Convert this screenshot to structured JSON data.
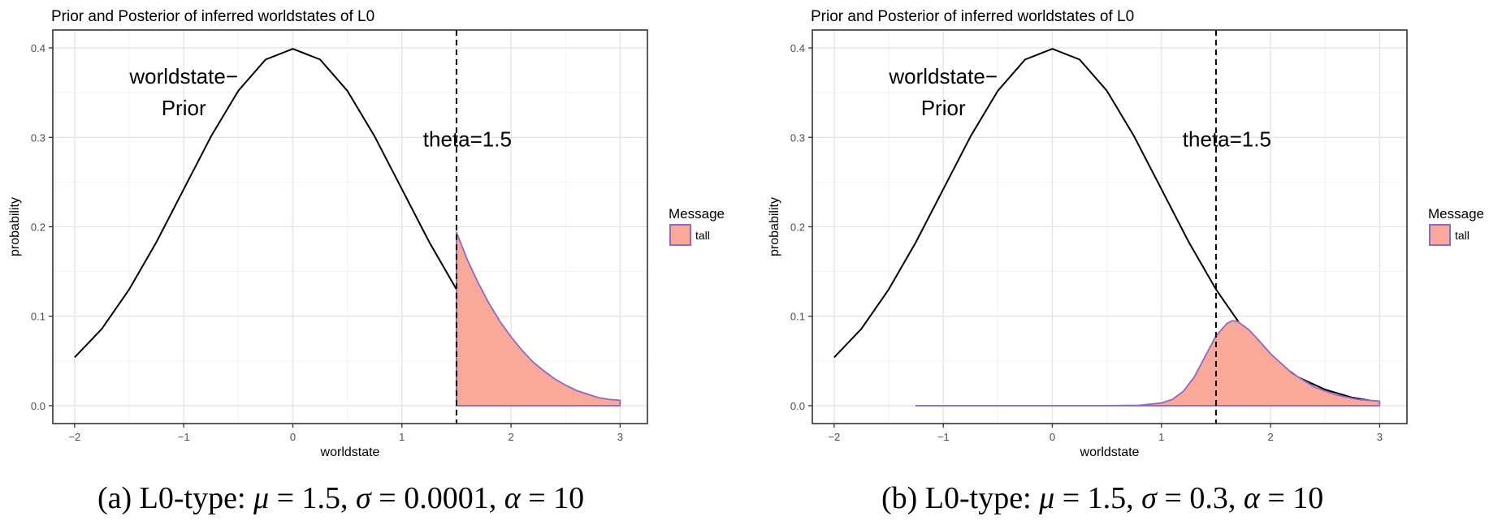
{
  "chart_data": [
    {
      "type": "area",
      "title": "Prior and Posterior of inferred worldstates of L0",
      "xlabel": "worldstate",
      "ylabel": "probability",
      "xlim": [
        -2.2,
        3.25
      ],
      "ylim": [
        -0.02,
        0.42
      ],
      "x_ticks": [
        -2,
        -1,
        0,
        1,
        2,
        3
      ],
      "x_tick_labels": [
        "−2",
        "−1",
        "0",
        "1",
        "2",
        "3"
      ],
      "y_ticks": [
        0.0,
        0.1,
        0.2,
        0.3,
        0.4
      ],
      "y_tick_labels": [
        "0.0",
        "0.1",
        "0.2",
        "0.3",
        "0.4"
      ],
      "grid": true,
      "legend": {
        "title": "Message",
        "position": "right",
        "entries": [
          {
            "label": "tall",
            "fill": "#f8a99a",
            "stroke": "#8b6bc7"
          }
        ]
      },
      "annotations": [
        {
          "lines": [
            "worldstate−",
            "Prior"
          ],
          "x": -1.0,
          "y": 0.36
        },
        {
          "lines": [
            "theta=1.5"
          ],
          "x": 1.6,
          "y": 0.29
        }
      ],
      "vline": {
        "x": 1.5,
        "style": "dashed"
      },
      "series": [
        {
          "name": "worldstate−Prior",
          "kind": "line",
          "color": "#000000",
          "x": [
            -2.0,
            -1.75,
            -1.5,
            -1.25,
            -1.0,
            -0.75,
            -0.5,
            -0.25,
            0.0,
            0.25,
            0.5,
            0.75,
            1.0,
            1.25,
            1.5,
            1.75,
            2.0,
            2.25,
            2.5,
            2.75,
            3.0
          ],
          "y": [
            0.054,
            0.086,
            0.13,
            0.183,
            0.242,
            0.301,
            0.352,
            0.387,
            0.399,
            0.387,
            0.352,
            0.301,
            0.242,
            0.183,
            0.13,
            0.086,
            0.054,
            0.032,
            0.018,
            0.009,
            0.004
          ]
        },
        {
          "name": "tall",
          "kind": "area",
          "fill": "#f8a99a",
          "stroke": "#8b6bc7",
          "x": [
            1.5,
            1.6,
            1.7,
            1.8,
            1.9,
            2.0,
            2.1,
            2.2,
            2.3,
            2.4,
            2.5,
            2.6,
            2.7,
            2.8,
            2.9,
            3.0
          ],
          "y": [
            0.194,
            0.163,
            0.137,
            0.114,
            0.094,
            0.077,
            0.062,
            0.049,
            0.039,
            0.03,
            0.023,
            0.017,
            0.013,
            0.009,
            0.007,
            0.006
          ]
        }
      ]
    },
    {
      "type": "area",
      "title": "Prior and Posterior of inferred worldstates of L0",
      "xlabel": "worldstate",
      "ylabel": "probability",
      "xlim": [
        -2.2,
        3.25
      ],
      "ylim": [
        -0.02,
        0.42
      ],
      "x_ticks": [
        -2,
        -1,
        0,
        1,
        2,
        3
      ],
      "x_tick_labels": [
        "−2",
        "−1",
        "0",
        "1",
        "2",
        "3"
      ],
      "y_ticks": [
        0.0,
        0.1,
        0.2,
        0.3,
        0.4
      ],
      "y_tick_labels": [
        "0.0",
        "0.1",
        "0.2",
        "0.3",
        "0.4"
      ],
      "grid": true,
      "legend": {
        "title": "Message",
        "position": "right",
        "entries": [
          {
            "label": "tall",
            "fill": "#f8a99a",
            "stroke": "#8b6bc7"
          }
        ]
      },
      "annotations": [
        {
          "lines": [
            "worldstate−",
            "Prior"
          ],
          "x": -1.0,
          "y": 0.36
        },
        {
          "lines": [
            "theta=1.5"
          ],
          "x": 1.6,
          "y": 0.29
        }
      ],
      "vline": {
        "x": 1.5,
        "style": "dashed"
      },
      "series": [
        {
          "name": "worldstate−Prior",
          "kind": "line",
          "color": "#000000",
          "x": [
            -2.0,
            -1.75,
            -1.5,
            -1.25,
            -1.0,
            -0.75,
            -0.5,
            -0.25,
            0.0,
            0.25,
            0.5,
            0.75,
            1.0,
            1.25,
            1.5,
            1.75,
            2.0,
            2.25,
            2.5,
            2.75,
            3.0
          ],
          "y": [
            0.054,
            0.086,
            0.13,
            0.183,
            0.242,
            0.301,
            0.352,
            0.387,
            0.399,
            0.387,
            0.352,
            0.301,
            0.242,
            0.183,
            0.13,
            0.086,
            0.054,
            0.032,
            0.018,
            0.009,
            0.004
          ]
        },
        {
          "name": "tall",
          "kind": "area",
          "fill": "#f8a99a",
          "stroke": "#8b6bc7",
          "x": [
            -1.25,
            -0.5,
            0.0,
            0.5,
            0.8,
            1.0,
            1.1,
            1.2,
            1.3,
            1.4,
            1.5,
            1.6,
            1.65,
            1.7,
            1.8,
            1.9,
            2.0,
            2.2,
            2.4,
            2.6,
            2.8,
            3.0
          ],
          "y": [
            0.0,
            0.0,
            0.0,
            0.0,
            0.0005,
            0.003,
            0.007,
            0.016,
            0.032,
            0.055,
            0.078,
            0.092,
            0.095,
            0.094,
            0.085,
            0.072,
            0.058,
            0.036,
            0.021,
            0.012,
            0.007,
            0.005
          ]
        }
      ]
    }
  ],
  "captions": [
    {
      "prefix": "(a) L0-type: ",
      "mu": "μ",
      "mu_value": " = 1.5, ",
      "sigma": "σ",
      "sigma_value": " = 0.0001, ",
      "alpha": "α",
      "alpha_value": " = 10"
    },
    {
      "prefix": "(b) L0-type: ",
      "mu": "μ",
      "mu_value": " = 1.5, ",
      "sigma": "σ",
      "sigma_value": " = 0.3, ",
      "alpha": "α",
      "alpha_value": " = 10"
    }
  ]
}
